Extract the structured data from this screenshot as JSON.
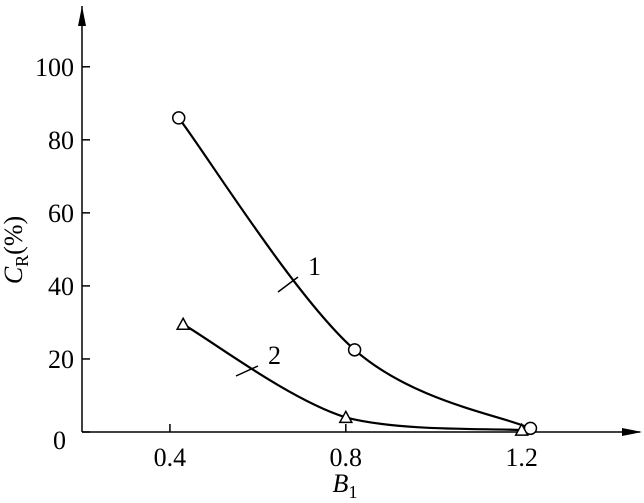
{
  "chart_data": {
    "type": "line",
    "xlabel": [
      "B",
      "1"
    ],
    "ylabel": [
      "C",
      "R",
      "(%)"
    ],
    "xlim": [
      0.2,
      1.46
    ],
    "ylim": [
      0,
      115
    ],
    "xticks": [
      0.4,
      0.8,
      1.2
    ],
    "yticks": [
      0,
      20,
      40,
      60,
      80,
      100
    ],
    "series": [
      {
        "name": "1",
        "color": "#000000",
        "marker": "circle",
        "x": [
          0.42,
          0.82,
          1.22
        ],
        "values": [
          86,
          22.5,
          1
        ]
      },
      {
        "name": "2",
        "color": "#000000",
        "marker": "triangle",
        "x": [
          0.43,
          0.8,
          1.2
        ],
        "values": [
          29.5,
          4,
          0.5
        ]
      }
    ]
  }
}
